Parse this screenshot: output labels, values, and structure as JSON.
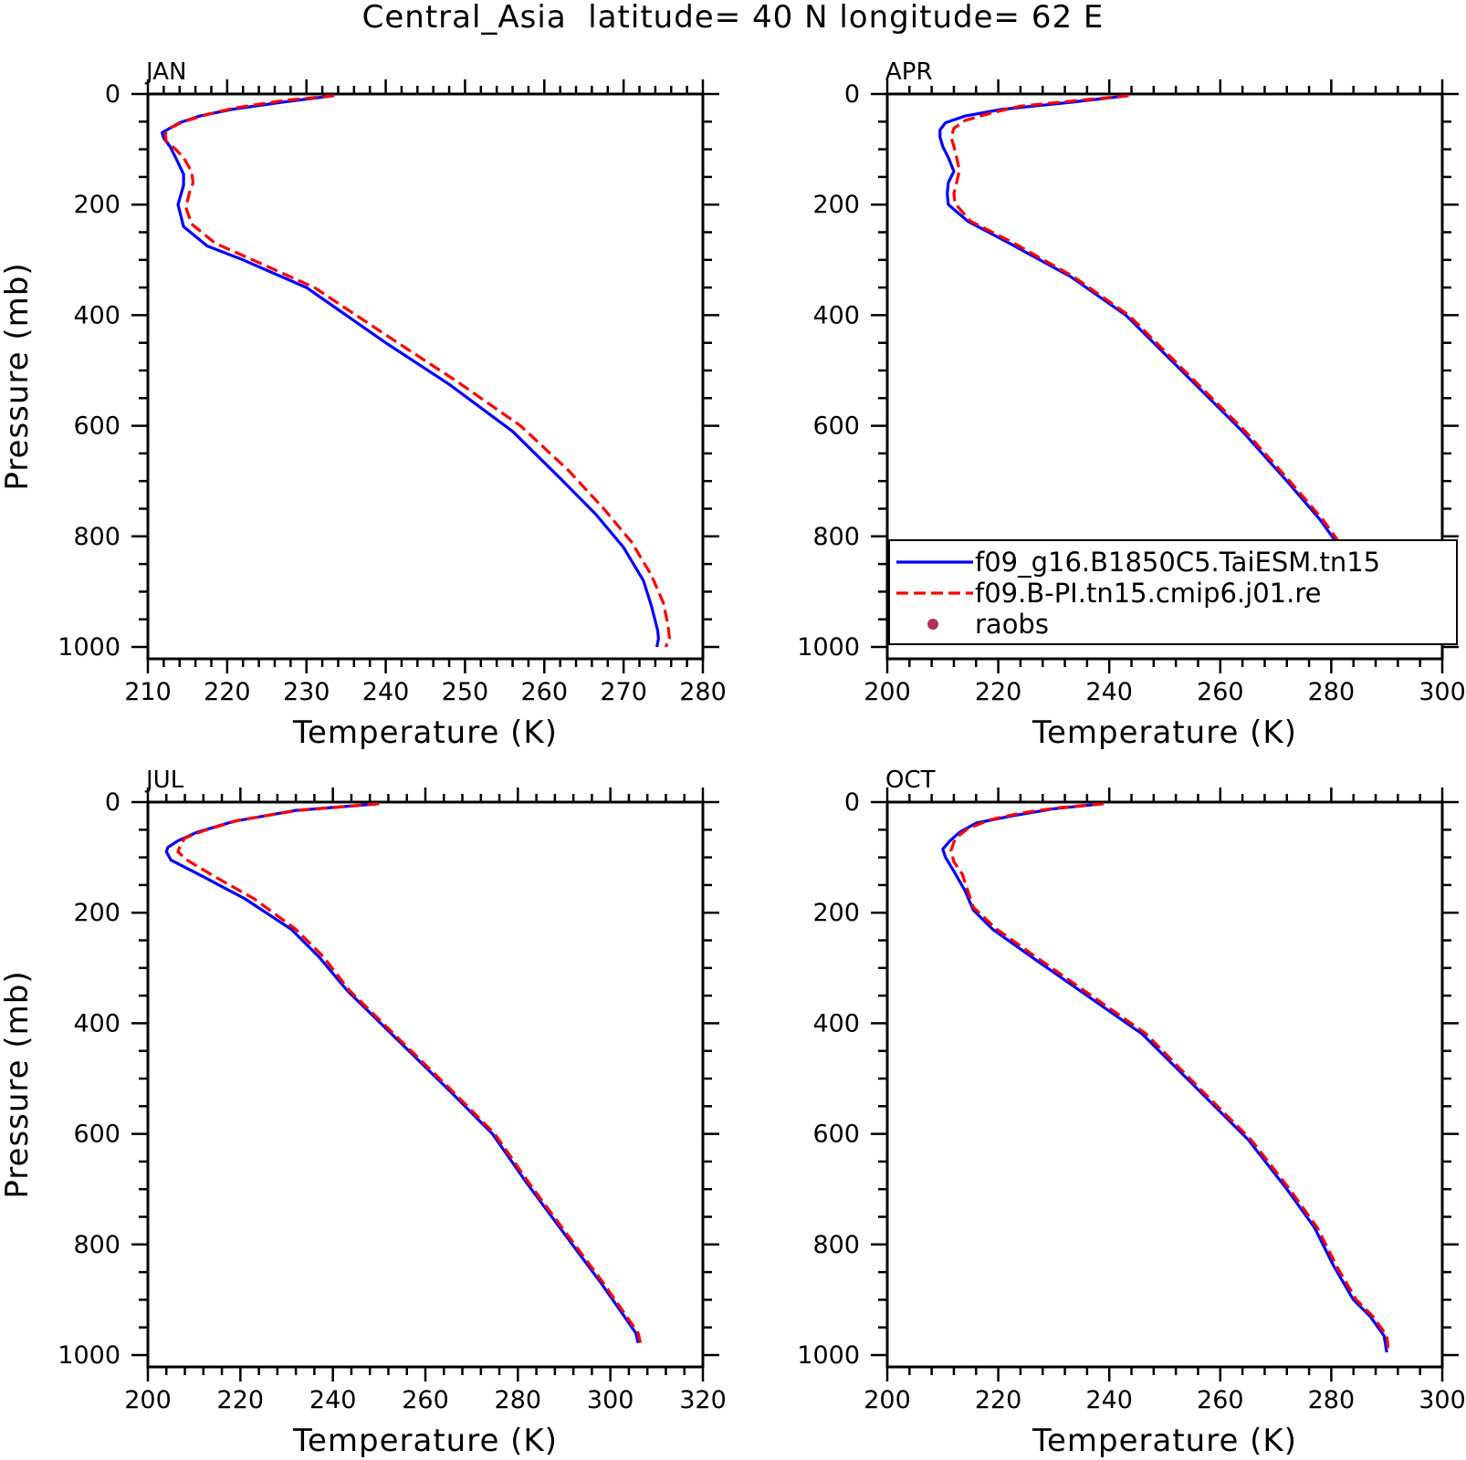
{
  "figure": {
    "title": "Central_Asia  latitude= 40 N longitude= 62 E"
  },
  "legend": {
    "entries": [
      {
        "label": "f09_g16.B1850C5.TaiESM.tn15",
        "color": "#0000ff",
        "style": "solid"
      },
      {
        "label": "f09.B-PI.tn15.cmip6.j01.re",
        "color": "#ff0000",
        "style": "dashed"
      },
      {
        "label": "raobs",
        "color": "#b03060",
        "style": "marker"
      }
    ]
  },
  "chart_data": [
    {
      "type": "line",
      "panel": "JAN",
      "xlabel": "Temperature (K)",
      "ylabel": "Pressure (mb)",
      "xlim": [
        210,
        280
      ],
      "ylim": [
        1000,
        0
      ],
      "y_reversed": true,
      "xticks": [
        210,
        220,
        230,
        240,
        250,
        260,
        270,
        280
      ],
      "yticks": [
        0,
        200,
        400,
        600,
        800,
        1000
      ],
      "series": [
        {
          "name": "f09_g16.B1850C5.TaiESM.tn15",
          "color": "#0000ff",
          "dash": false,
          "points": [
            [
              233.5,
              3
            ],
            [
              226.8,
              15
            ],
            [
              220.5,
              28
            ],
            [
              216.5,
              40
            ],
            [
              214,
              52
            ],
            [
              213,
              60
            ],
            [
              211.8,
              70
            ],
            [
              212,
              80
            ],
            [
              212.8,
              95
            ],
            [
              213.5,
              115
            ],
            [
              214.5,
              145
            ],
            [
              214.5,
              165
            ],
            [
              213.8,
              200
            ],
            [
              214.5,
              240
            ],
            [
              217.5,
              275
            ],
            [
              222,
              300
            ],
            [
              230,
              350
            ],
            [
              240,
              450
            ],
            [
              248,
              525
            ],
            [
              256,
              610
            ],
            [
              262,
              695
            ],
            [
              266.5,
              760
            ],
            [
              270,
              820
            ],
            [
              272.5,
              880
            ],
            [
              273.5,
              925
            ],
            [
              274.3,
              970
            ],
            [
              274.4,
              985
            ],
            [
              274.2,
              1000
            ]
          ]
        },
        {
          "name": "f09.B-PI.tn15.cmip6.j01.re",
          "color": "#ff0000",
          "dash": true,
          "points": [
            [
              233.5,
              3
            ],
            [
              227,
              12
            ],
            [
              221,
              25
            ],
            [
              217.5,
              37
            ],
            [
              214.5,
              50
            ],
            [
              213,
              60
            ],
            [
              212.2,
              72
            ],
            [
              212.3,
              85
            ],
            [
              213.5,
              100
            ],
            [
              214.5,
              115
            ],
            [
              215.5,
              140
            ],
            [
              215.7,
              160
            ],
            [
              215.2,
              180
            ],
            [
              214.8,
              205
            ],
            [
              215.5,
              235
            ],
            [
              218.5,
              270
            ],
            [
              224,
              305
            ],
            [
              231,
              350
            ],
            [
              241,
              445
            ],
            [
              249,
              520
            ],
            [
              257,
              600
            ],
            [
              263,
              680
            ],
            [
              267.5,
              750
            ],
            [
              271,
              810
            ],
            [
              273.5,
              870
            ],
            [
              275,
              920
            ],
            [
              275.6,
              960
            ],
            [
              275.8,
              985
            ],
            [
              275.3,
              1000
            ]
          ]
        }
      ]
    },
    {
      "type": "line",
      "panel": "APR",
      "xlabel": "Temperature (K)",
      "ylabel": "",
      "xlim": [
        200,
        300
      ],
      "ylim": [
        1000,
        0
      ],
      "y_reversed": true,
      "xticks": [
        200,
        220,
        240,
        260,
        280,
        300
      ],
      "yticks": [
        0,
        200,
        400,
        600,
        800,
        1000
      ],
      "series": [
        {
          "name": "f09_g16.B1850C5.TaiESM.tn15",
          "color": "#0000ff",
          "dash": false,
          "points": [
            [
              243.5,
              3
            ],
            [
              233,
              15
            ],
            [
              220.5,
              28
            ],
            [
              214,
              40
            ],
            [
              210.5,
              52
            ],
            [
              209.5,
              65
            ],
            [
              209.5,
              78
            ],
            [
              210,
              95
            ],
            [
              211,
              115
            ],
            [
              212,
              140
            ],
            [
              211,
              160
            ],
            [
              210.8,
              180
            ],
            [
              211,
              200
            ],
            [
              214.5,
              230
            ],
            [
              222,
              270
            ],
            [
              233,
              330
            ],
            [
              243,
              400
            ],
            [
              255,
              520
            ],
            [
              264,
              610
            ],
            [
              272,
              700
            ],
            [
              278,
              770
            ],
            [
              283,
              840
            ],
            [
              287,
              910
            ],
            [
              289.5,
              950
            ],
            [
              291,
              975
            ],
            [
              291.5,
              990
            ]
          ]
        },
        {
          "name": "f09.B-PI.tn15.cmip6.j01.re",
          "color": "#ff0000",
          "dash": true,
          "points": [
            [
              243.5,
              3
            ],
            [
              234,
              12
            ],
            [
              224,
              22
            ],
            [
              218.5,
              35
            ],
            [
              214,
              48
            ],
            [
              212,
              62
            ],
            [
              211.5,
              78
            ],
            [
              212,
              95
            ],
            [
              212.5,
              115
            ],
            [
              213,
              138
            ],
            [
              212.5,
              160
            ],
            [
              212,
              180
            ],
            [
              212.2,
              198
            ],
            [
              215,
              230
            ],
            [
              222.5,
              268
            ],
            [
              233.5,
              330
            ],
            [
              243.5,
              400
            ],
            [
              255.5,
              520
            ],
            [
              264.5,
              610
            ],
            [
              272.5,
              700
            ],
            [
              278.5,
              770
            ],
            [
              283.5,
              840
            ],
            [
              287.5,
              910
            ],
            [
              290,
              950
            ],
            [
              291.6,
              975
            ],
            [
              292,
              990
            ]
          ]
        }
      ]
    },
    {
      "type": "line",
      "panel": "JUL",
      "xlabel": "Temperature (K)",
      "ylabel": "Pressure (mb)",
      "xlim": [
        200,
        320
      ],
      "ylim": [
        1000,
        0
      ],
      "y_reversed": true,
      "xticks": [
        200,
        220,
        240,
        260,
        280,
        300,
        320
      ],
      "yticks": [
        0,
        200,
        400,
        600,
        800,
        1000
      ],
      "series": [
        {
          "name": "f09_g16.B1850C5.TaiESM.tn15",
          "color": "#0000ff",
          "dash": false,
          "points": [
            [
              250,
              3
            ],
            [
              232,
              15
            ],
            [
              218.5,
              35
            ],
            [
              210.5,
              55
            ],
            [
              206.5,
              70
            ],
            [
              204.3,
              82
            ],
            [
              204,
              90
            ],
            [
              205,
              105
            ],
            [
              212,
              135
            ],
            [
              221,
              175
            ],
            [
              231,
              230
            ],
            [
              237,
              280
            ],
            [
              243,
              340
            ],
            [
              254,
              430
            ],
            [
              265,
              520
            ],
            [
              274.5,
              600
            ],
            [
              282,
              690
            ],
            [
              290,
              780
            ],
            [
              298,
              870
            ],
            [
              303,
              930
            ],
            [
              305.5,
              960
            ],
            [
              306,
              978
            ]
          ]
        },
        {
          "name": "f09.B-PI.tn15.cmip6.j01.re",
          "color": "#ff0000",
          "dash": true,
          "points": [
            [
              250,
              3
            ],
            [
              232.5,
              15
            ],
            [
              219.5,
              33
            ],
            [
              212,
              52
            ],
            [
              208,
              65
            ],
            [
              207,
              78
            ],
            [
              206.5,
              90
            ],
            [
              208.5,
              105
            ],
            [
              214.5,
              135
            ],
            [
              223,
              175
            ],
            [
              232,
              230
            ],
            [
              238,
              280
            ],
            [
              243.5,
              340
            ],
            [
              254.5,
              430
            ],
            [
              265.5,
              520
            ],
            [
              275,
              600
            ],
            [
              282.5,
              690
            ],
            [
              290.5,
              780
            ],
            [
              298.5,
              870
            ],
            [
              303.5,
              930
            ],
            [
              306,
              960
            ],
            [
              306.5,
              978
            ]
          ]
        }
      ]
    },
    {
      "type": "line",
      "panel": "OCT",
      "xlabel": "Temperature (K)",
      "ylabel": "",
      "xlim": [
        200,
        300
      ],
      "ylim": [
        1000,
        0
      ],
      "y_reversed": true,
      "xticks": [
        200,
        220,
        240,
        260,
        280,
        300
      ],
      "yticks": [
        0,
        200,
        400,
        600,
        800,
        1000
      ],
      "series": [
        {
          "name": "f09_g16.B1850C5.TaiESM.tn15",
          "color": "#0000ff",
          "dash": false,
          "points": [
            [
              239,
              3
            ],
            [
              230,
              12
            ],
            [
              222.5,
              25
            ],
            [
              216,
              38
            ],
            [
              213,
              55
            ],
            [
              211.3,
              70
            ],
            [
              210,
              85
            ],
            [
              210.5,
              100
            ],
            [
              212,
              125
            ],
            [
              214,
              160
            ],
            [
              215.5,
              195
            ],
            [
              219,
              230
            ],
            [
              226,
              280
            ],
            [
              236,
              350
            ],
            [
              246,
              420
            ],
            [
              256,
              520
            ],
            [
              265,
              610
            ],
            [
              272,
              700
            ],
            [
              277,
              770
            ],
            [
              280.5,
              840
            ],
            [
              284,
              900
            ],
            [
              287,
              930
            ],
            [
              289.5,
              965
            ],
            [
              290,
              995
            ]
          ]
        },
        {
          "name": "f09.B-PI.tn15.cmip6.j01.re",
          "color": "#ff0000",
          "dash": true,
          "points": [
            [
              239,
              3
            ],
            [
              231,
              10
            ],
            [
              224,
              20
            ],
            [
              218.5,
              32
            ],
            [
              214.5,
              48
            ],
            [
              213,
              60
            ],
            [
              212,
              72
            ],
            [
              211.5,
              88
            ],
            [
              212,
              108
            ],
            [
              213.5,
              130
            ],
            [
              214.5,
              160
            ],
            [
              215.5,
              190
            ],
            [
              219.5,
              228
            ],
            [
              226.5,
              278
            ],
            [
              236.5,
              348
            ],
            [
              246.5,
              418
            ],
            [
              256.5,
              520
            ],
            [
              265.5,
              610
            ],
            [
              272.5,
              700
            ],
            [
              277.5,
              770
            ],
            [
              281,
              840
            ],
            [
              284.5,
              900
            ],
            [
              287.5,
              930
            ],
            [
              290,
              965
            ],
            [
              290.3,
              992
            ]
          ]
        }
      ]
    }
  ]
}
